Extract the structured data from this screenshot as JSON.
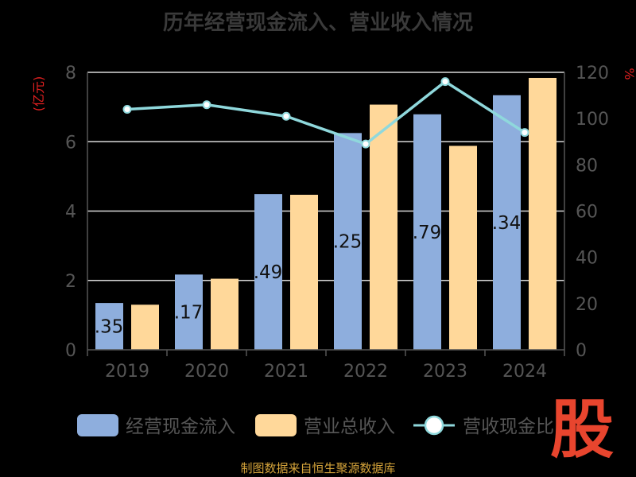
{
  "header": {
    "title": "历年经营现金流入、营业收入情况"
  },
  "footer": {
    "source": "制图数据来自恒生聚源数据库"
  },
  "watermark": {
    "text": "股"
  },
  "colors": {
    "cash_inflow": "#8eaedd",
    "revenue": "#ffd89a",
    "ratio_line": "#8fd8dc",
    "axis_unit": "#e02020",
    "axis_text": "#555555",
    "grid": "#d9d9d9"
  },
  "chart_data": {
    "type": "bar",
    "categories": [
      "2019",
      "2020",
      "2021",
      "2022",
      "2023",
      "2024"
    ],
    "left_axis": {
      "unit": "(亿元)",
      "ylim": [
        0,
        8
      ],
      "ticks": [
        "0",
        "2",
        "4",
        "6",
        "8"
      ]
    },
    "right_axis": {
      "unit": "%",
      "ylim": [
        0,
        120
      ],
      "ticks": [
        "0",
        "20",
        "40",
        "60",
        "80",
        "100",
        "120"
      ]
    },
    "series": [
      {
        "name": "经营现金流入",
        "type": "bar",
        "axis": "left",
        "values": [
          1.35,
          2.17,
          4.49,
          6.25,
          6.79,
          7.34
        ],
        "labels": [
          ".35",
          ".17",
          ".49",
          ".25",
          ".79",
          ".34"
        ]
      },
      {
        "name": "营业总收入",
        "type": "bar",
        "axis": "left",
        "values": [
          1.3,
          2.05,
          4.47,
          7.07,
          5.88,
          7.84
        ]
      },
      {
        "name": "营收现金比",
        "type": "line",
        "axis": "right",
        "values": [
          104,
          106,
          101,
          89,
          116,
          94
        ]
      }
    ],
    "legend": {
      "position": "bottom"
    },
    "grid": true
  }
}
